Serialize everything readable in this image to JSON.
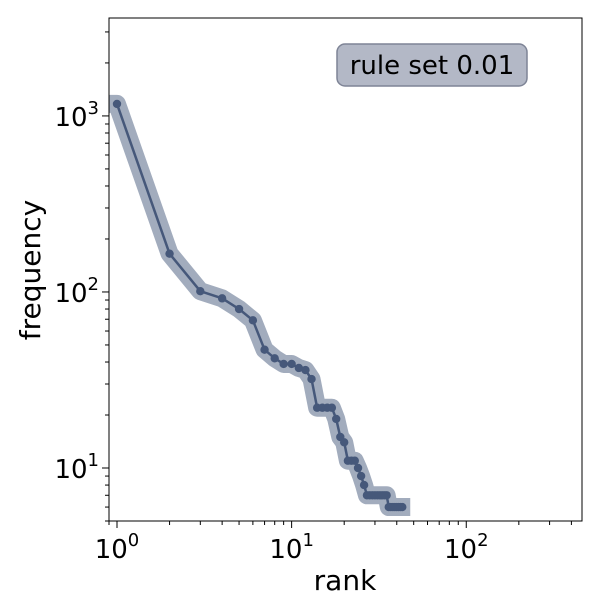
{
  "chart_data": {
    "type": "line",
    "xscale": "log",
    "yscale": "log",
    "xlabel": "rank",
    "ylabel": "frequency",
    "xlim": [
      0.9,
      460
    ],
    "ylim": [
      5,
      3600
    ],
    "x_ticks": [
      {
        "value": 1,
        "base": "10",
        "exp": "0"
      },
      {
        "value": 10,
        "base": "10",
        "exp": "1"
      },
      {
        "value": 100,
        "base": "10",
        "exp": "2"
      }
    ],
    "y_ticks": [
      {
        "value": 10,
        "base": "10",
        "exp": "1"
      },
      {
        "value": 100,
        "base": "10",
        "exp": "2"
      },
      {
        "value": 1000,
        "base": "10",
        "exp": "3"
      }
    ],
    "grid": false,
    "legend_position": "top-right",
    "annotation": "rule set 0.01",
    "colors": {
      "line": "#46587a",
      "band": "#a2acbd",
      "annotation_fill": "#b3b8c6",
      "annotation_border": "#7e8496"
    },
    "series": [
      {
        "x": [
          1,
          2,
          3,
          4,
          5,
          6,
          7,
          8,
          9,
          10,
          11,
          12,
          13,
          14,
          15,
          16,
          17,
          18,
          19,
          20,
          21,
          22,
          23,
          24,
          25,
          26,
          27,
          28,
          29,
          30,
          31,
          32,
          33,
          34,
          35,
          36,
          37,
          38,
          39,
          40,
          41,
          42,
          43
        ],
        "y": [
          1170,
          165,
          101,
          92,
          80,
          69,
          47,
          42,
          39,
          39,
          37,
          36,
          32,
          22,
          22,
          22,
          22,
          19,
          15,
          14,
          11,
          11,
          11,
          10,
          9,
          8,
          7,
          7,
          7,
          7,
          7,
          7,
          7,
          7,
          7,
          6,
          6,
          6,
          6,
          6,
          6,
          6,
          6
        ]
      }
    ]
  }
}
